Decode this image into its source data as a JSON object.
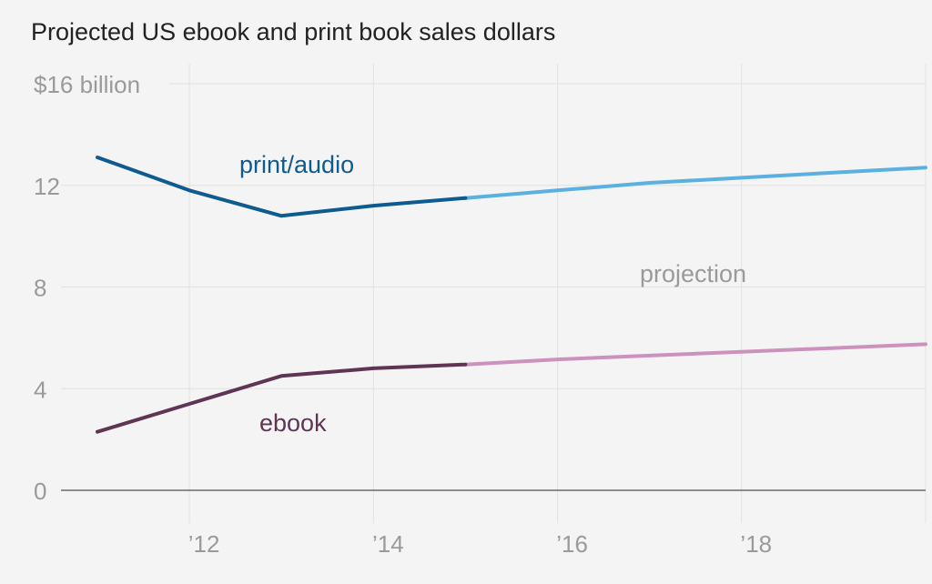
{
  "chart_data": {
    "type": "line",
    "title": "Projected US ebook and print book sales dollars",
    "xlabel": "",
    "ylabel": "",
    "xlim": [
      2011,
      2020
    ],
    "ylim": [
      0,
      16
    ],
    "y_ticks": [
      {
        "value": 0,
        "label": "0"
      },
      {
        "value": 4,
        "label": "4"
      },
      {
        "value": 8,
        "label": "8"
      },
      {
        "value": 12,
        "label": "12"
      },
      {
        "value": 16,
        "label": "$16 billion"
      }
    ],
    "x_ticks": [
      {
        "value": 2012,
        "label": "’12"
      },
      {
        "value": 2014,
        "label": "’14"
      },
      {
        "value": 2016,
        "label": "’16"
      },
      {
        "value": 2018,
        "label": "’18"
      },
      {
        "value": 2020,
        "label": "’"
      }
    ],
    "grid": true,
    "projection_start": 2015,
    "annotation": "projection",
    "series": [
      {
        "name": "print/audio",
        "color_actual": "#0f5a8f",
        "color_projection": "#5ab0de",
        "x": [
          2011,
          2012,
          2013,
          2014,
          2015,
          2016,
          2017,
          2018,
          2019,
          2020
        ],
        "values": [
          13.1,
          11.8,
          10.8,
          11.2,
          11.5,
          11.8,
          12.1,
          12.3,
          12.5,
          12.7
        ]
      },
      {
        "name": "ebook",
        "color_actual": "#5e3553",
        "color_projection": "#cc92bd",
        "x": [
          2011,
          2012,
          2013,
          2014,
          2015,
          2016,
          2017,
          2018,
          2019,
          2020
        ],
        "values": [
          2.3,
          3.4,
          4.5,
          4.8,
          4.95,
          5.15,
          5.3,
          5.45,
          5.6,
          5.75
        ]
      }
    ]
  }
}
